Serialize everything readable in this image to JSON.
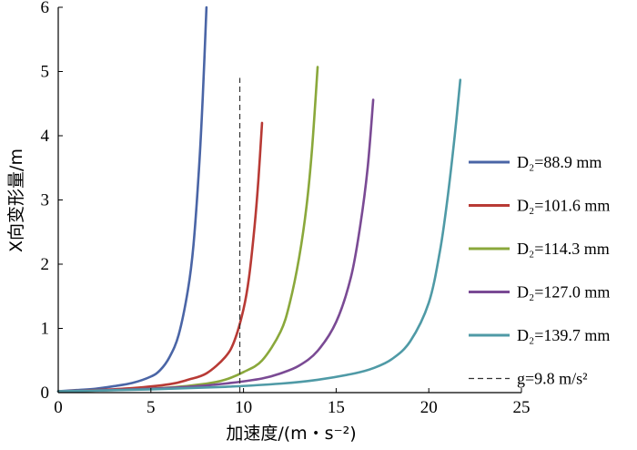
{
  "chart_data": {
    "type": "line",
    "xlabel": "加速度/(m・s⁻²)",
    "ylabel": "X向变形量/m",
    "xlim": [
      0,
      25
    ],
    "ylim": [
      0,
      6
    ],
    "xticks": [
      "0",
      "5",
      "10",
      "15",
      "20",
      "25"
    ],
    "yticks": [
      "0",
      "1",
      "2",
      "3",
      "4",
      "5",
      "6"
    ],
    "grid": false,
    "legend_position": "right",
    "series": [
      {
        "name": "D₂=88.9 mm",
        "color": "#4a65a6",
        "x": [
          0,
          1,
          2,
          3,
          4,
          5,
          5.5,
          6,
          6.5,
          7,
          7.3,
          7.6,
          7.8,
          8.0
        ],
        "y": [
          0.02,
          0.04,
          0.06,
          0.1,
          0.15,
          0.25,
          0.35,
          0.55,
          0.9,
          1.6,
          2.3,
          3.5,
          4.6,
          6.0
        ]
      },
      {
        "name": "D₂=101.6 mm",
        "color": "#b83a35",
        "x": [
          0,
          2,
          4,
          6,
          7,
          8,
          9,
          9.5,
          10,
          10.3,
          10.6,
          10.8,
          11.0
        ],
        "y": [
          0.02,
          0.04,
          0.07,
          0.13,
          0.2,
          0.3,
          0.55,
          0.8,
          1.3,
          1.8,
          2.6,
          3.3,
          4.2
        ]
      },
      {
        "name": "D₂=114.3 mm",
        "color": "#8aa83b",
        "x": [
          0,
          3,
          6,
          8,
          9,
          10,
          11,
          12,
          12.5,
          13,
          13.4,
          13.7,
          14.0
        ],
        "y": [
          0.02,
          0.04,
          0.08,
          0.14,
          0.2,
          0.32,
          0.5,
          0.95,
          1.4,
          2.1,
          2.9,
          3.8,
          5.07
        ]
      },
      {
        "name": "D₂=127.0 mm",
        "color": "#7a4a94",
        "x": [
          0,
          4,
          7,
          9,
          11,
          12,
          13,
          14,
          15,
          15.8,
          16.3,
          16.7,
          17.0
        ],
        "y": [
          0.02,
          0.05,
          0.09,
          0.14,
          0.22,
          0.3,
          0.42,
          0.65,
          1.1,
          1.8,
          2.6,
          3.5,
          4.56
        ]
      },
      {
        "name": "D₂=139.7 mm",
        "color": "#4f9aa6",
        "x": [
          0,
          5,
          9,
          12,
          14,
          16,
          17,
          18,
          19,
          20,
          20.6,
          21.0,
          21.4,
          21.7
        ],
        "y": [
          0.02,
          0.05,
          0.09,
          0.14,
          0.2,
          0.3,
          0.38,
          0.52,
          0.8,
          1.4,
          2.2,
          3.0,
          4.0,
          4.87
        ]
      }
    ],
    "reference_line": {
      "name": "g=9.8 m/s²",
      "x": 9.8,
      "y_range": [
        0,
        4.9
      ],
      "color": "#333333",
      "style": "dashed"
    }
  }
}
